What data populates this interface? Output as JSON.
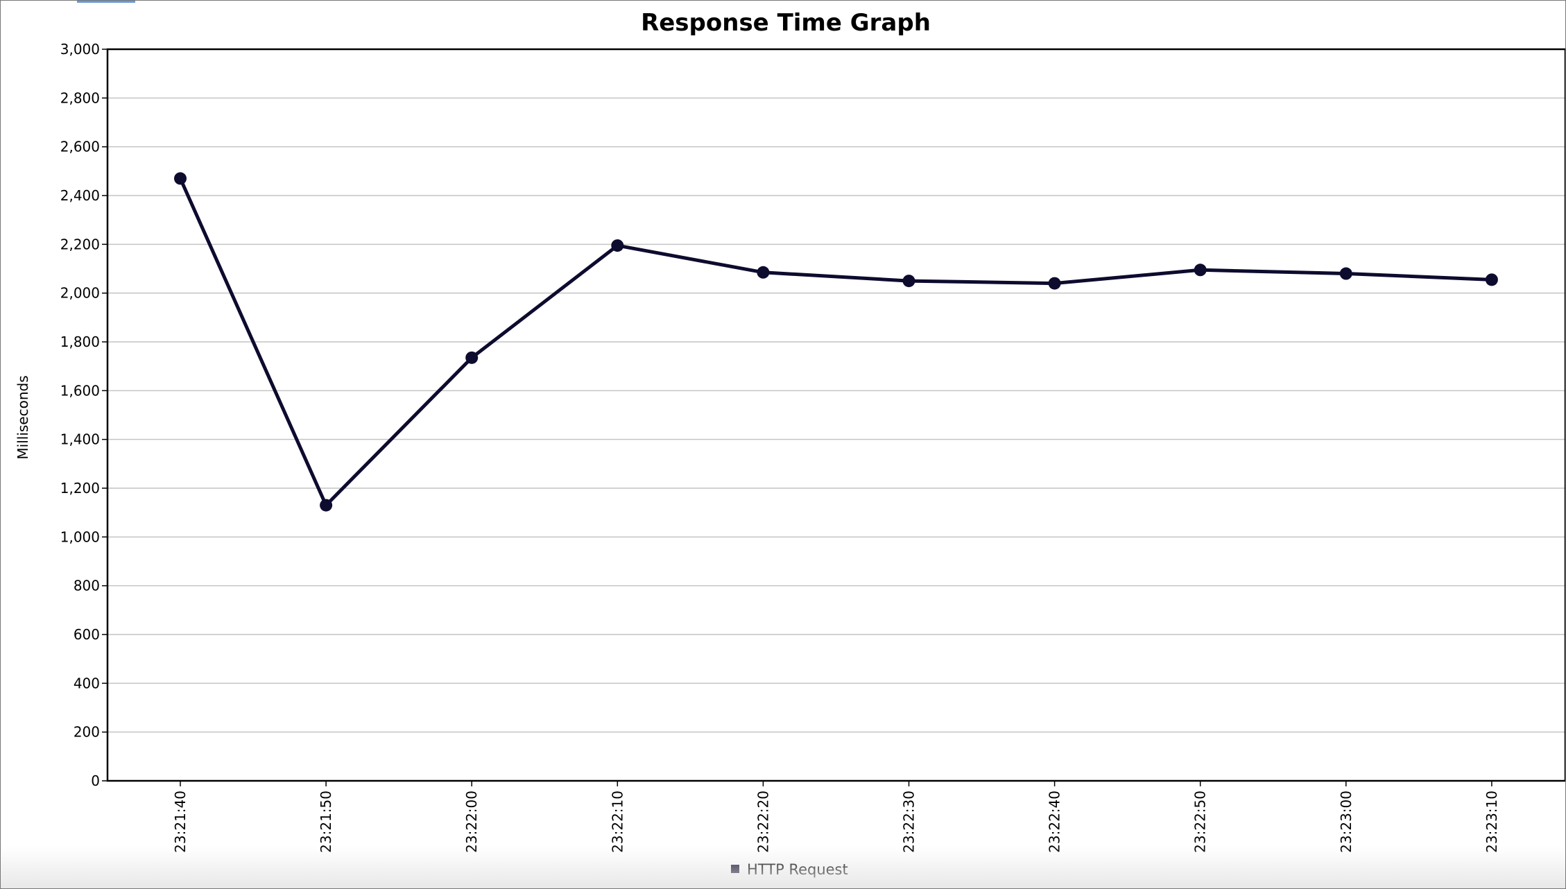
{
  "chart_data": {
    "type": "line",
    "title": "Response Time Graph",
    "xlabel": "",
    "ylabel": "Milliseconds",
    "ylim": [
      0,
      3000
    ],
    "y_ticks": [
      0,
      200,
      400,
      600,
      800,
      1000,
      1200,
      1400,
      1600,
      1800,
      2000,
      2200,
      2400,
      2600,
      2800,
      3000
    ],
    "y_tick_labels": [
      "0",
      "200",
      "400",
      "600",
      "800",
      "1,000",
      "1,200",
      "1,400",
      "1,600",
      "1,800",
      "2,000",
      "2,200",
      "2,400",
      "2,600",
      "2,800",
      "3,000"
    ],
    "categories": [
      "23:21:40",
      "23:21:50",
      "23:22:00",
      "23:22:10",
      "23:22:20",
      "23:22:30",
      "23:22:40",
      "23:22:50",
      "23:23:00",
      "23:23:10"
    ],
    "series": [
      {
        "name": "HTTP Request",
        "color": "#0d0b2e",
        "values": [
          2470,
          1130,
          1735,
          2195,
          2085,
          2050,
          2040,
          2095,
          2080,
          2055
        ]
      }
    ],
    "grid": true,
    "legend_position": "bottom-center"
  }
}
